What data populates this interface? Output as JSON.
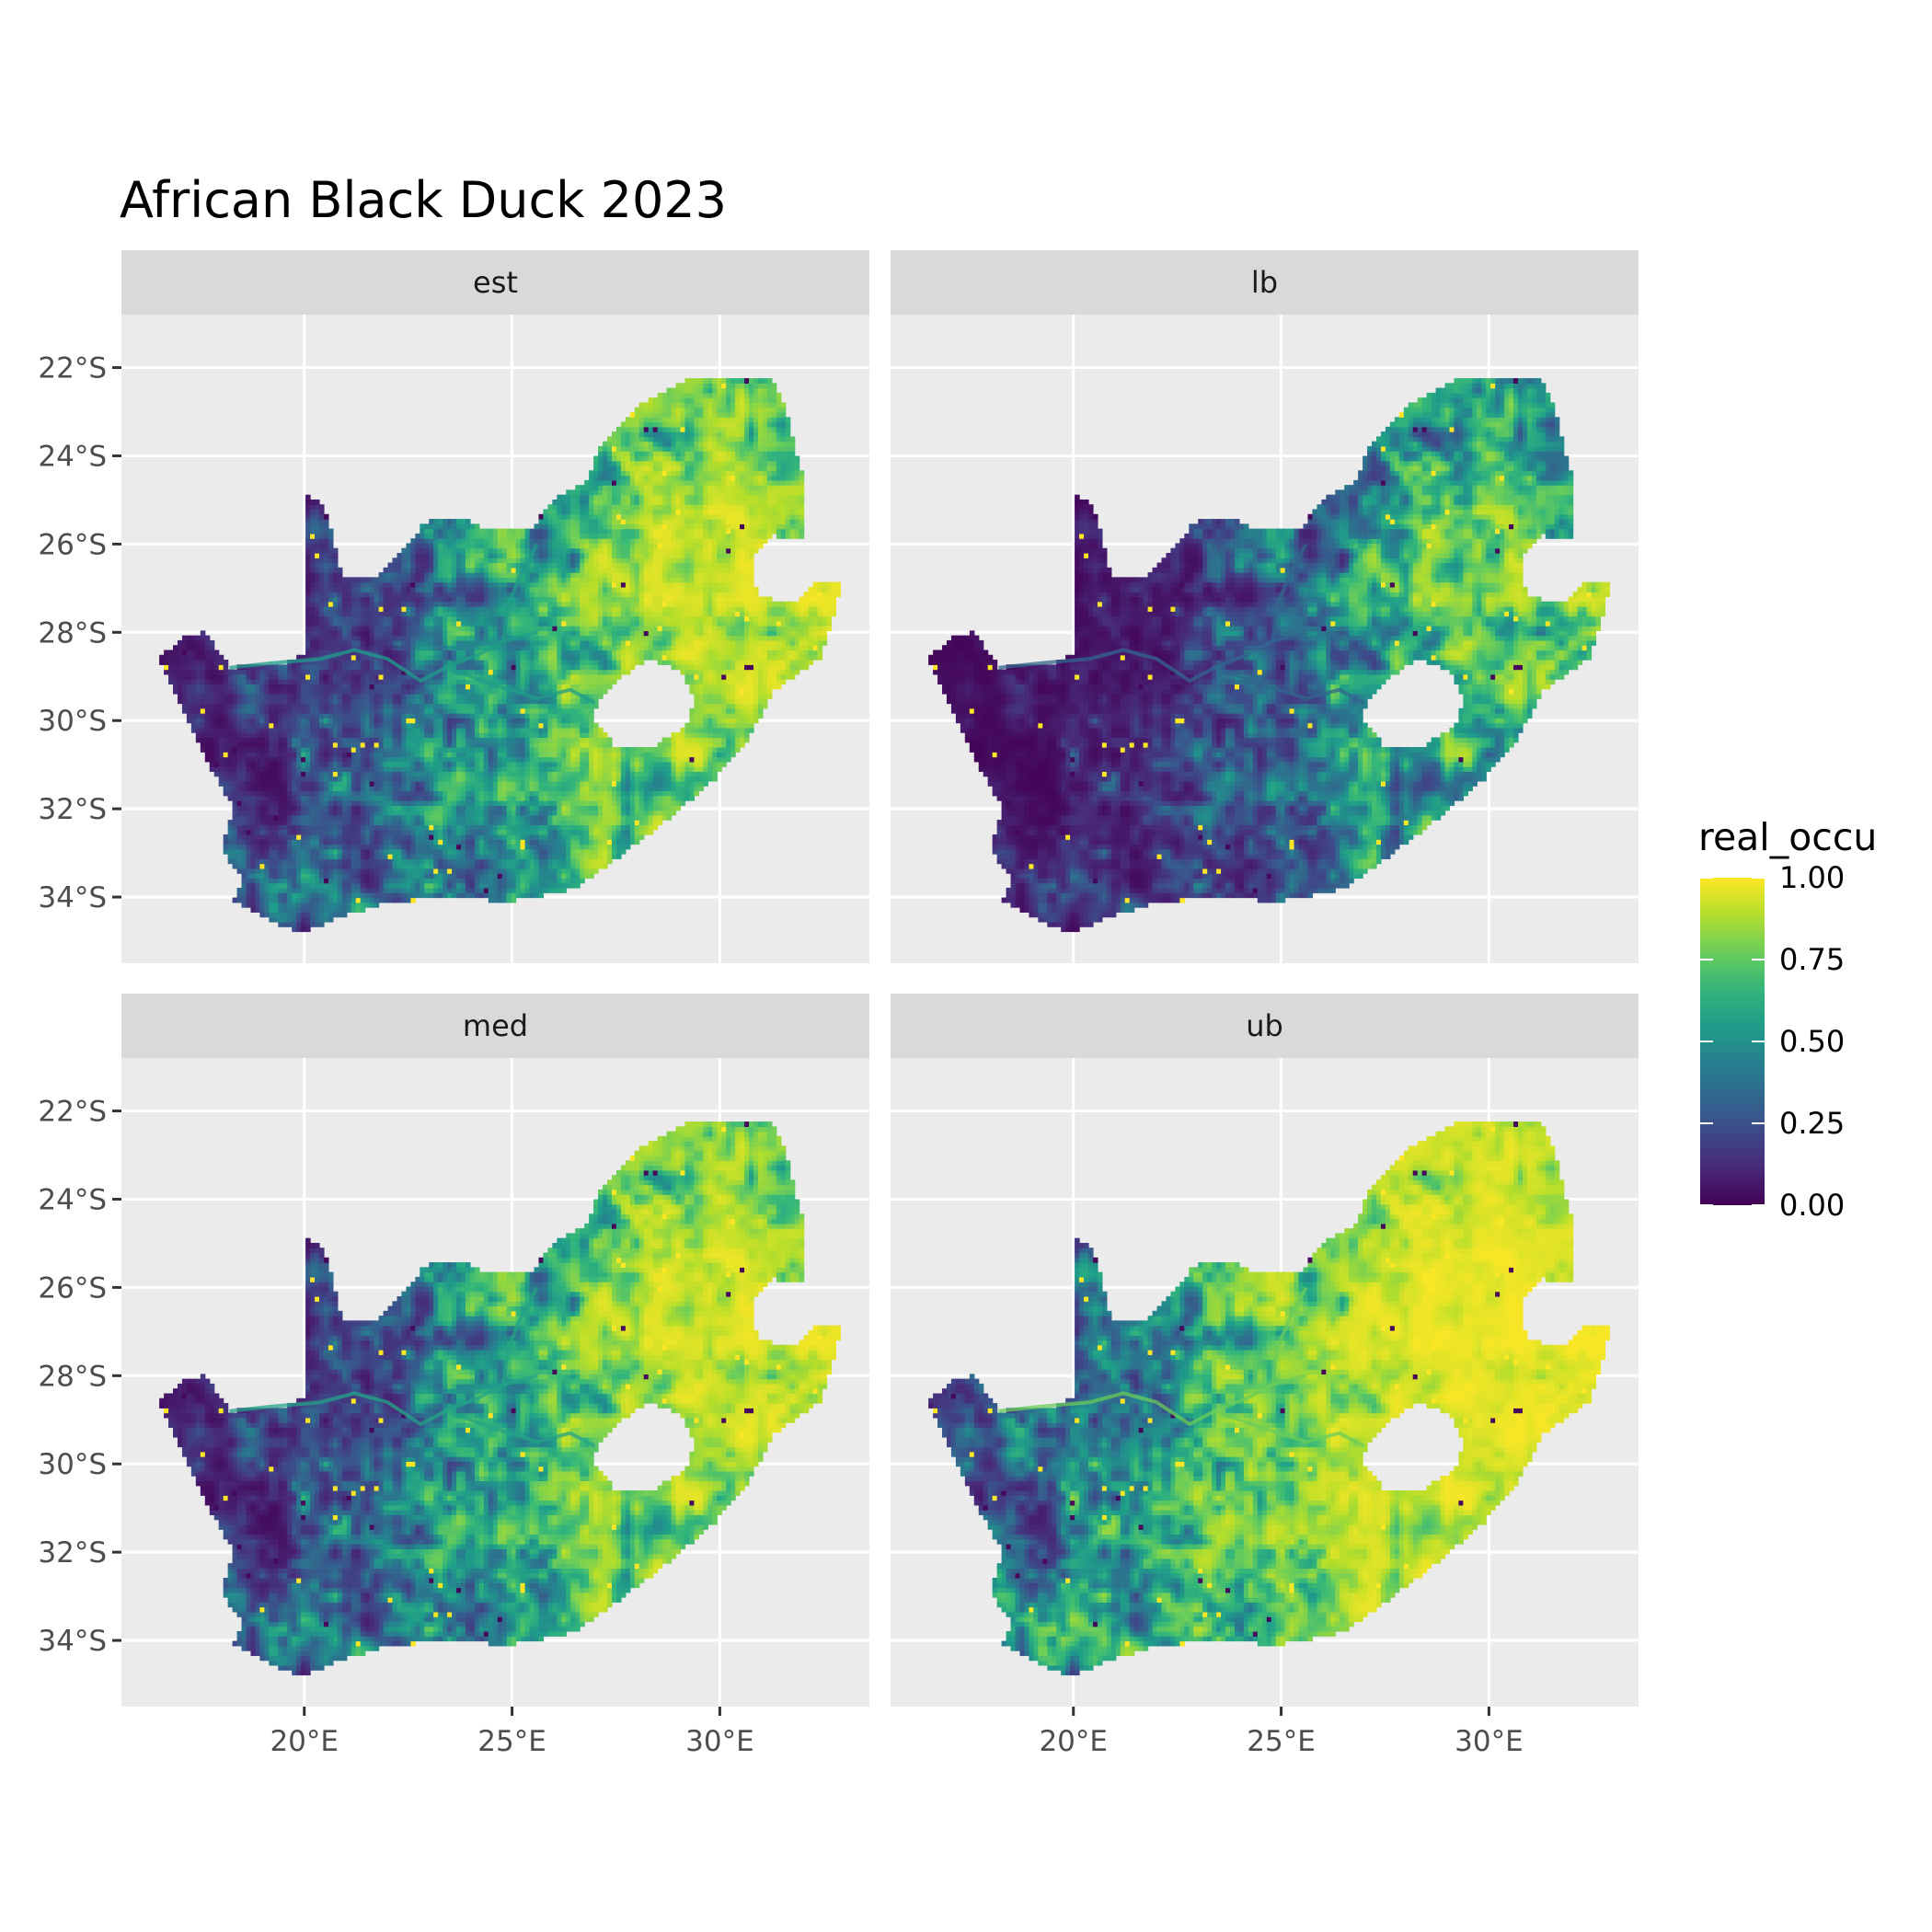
{
  "title": "African Black Duck 2023",
  "panels": [
    {
      "label": "est",
      "shift": 0.0
    },
    {
      "label": "lb",
      "shift": -0.22
    },
    {
      "label": "med",
      "shift": 0.03
    },
    {
      "label": "ub",
      "shift": 0.22
    }
  ],
  "axes": {
    "x_ticks": [
      {
        "value": 20,
        "label": "20°E"
      },
      {
        "value": 25,
        "label": "25°E"
      },
      {
        "value": 30,
        "label": "30°E"
      }
    ],
    "y_ticks": [
      {
        "value": -22,
        "label": "22°S"
      },
      {
        "value": -24,
        "label": "24°S"
      },
      {
        "value": -26,
        "label": "26°S"
      },
      {
        "value": -28,
        "label": "28°S"
      },
      {
        "value": -30,
        "label": "30°S"
      },
      {
        "value": -32,
        "label": "32°S"
      },
      {
        "value": -34,
        "label": "34°S"
      }
    ],
    "xlim": [
      15.6,
      33.6
    ],
    "ylim": [
      -35.5,
      -20.8
    ]
  },
  "legend": {
    "title": "real_occu",
    "ticks": [
      {
        "value": 1.0,
        "label": "1.00"
      },
      {
        "value": 0.75,
        "label": "0.75"
      },
      {
        "value": 0.5,
        "label": "0.50"
      },
      {
        "value": 0.25,
        "label": "0.25"
      },
      {
        "value": 0.0,
        "label": "0.00"
      }
    ],
    "colors": [
      "#440154",
      "#3b528b",
      "#21918c",
      "#5ec962",
      "#fde725"
    ]
  },
  "map_data": {
    "outline": [
      [
        16.5,
        -28.6
      ],
      [
        17.1,
        -28.1
      ],
      [
        17.6,
        -28.0
      ],
      [
        18.2,
        -28.8
      ],
      [
        19.5,
        -28.7
      ],
      [
        20.0,
        -28.5
      ],
      [
        20.0,
        -24.8
      ],
      [
        20.5,
        -25.2
      ],
      [
        20.8,
        -26.3
      ],
      [
        20.9,
        -26.8
      ],
      [
        21.7,
        -26.8
      ],
      [
        22.5,
        -26.0
      ],
      [
        22.9,
        -25.5
      ],
      [
        23.8,
        -25.4
      ],
      [
        24.5,
        -25.7
      ],
      [
        25.5,
        -25.6
      ],
      [
        26.0,
        -25.0
      ],
      [
        26.8,
        -24.6
      ],
      [
        27.1,
        -23.8
      ],
      [
        28.0,
        -22.9
      ],
      [
        29.3,
        -22.2
      ],
      [
        31.3,
        -22.3
      ],
      [
        31.6,
        -23.0
      ],
      [
        32.0,
        -24.5
      ],
      [
        32.0,
        -25.9
      ],
      [
        31.4,
        -25.9
      ],
      [
        31.1,
        -26.3
      ],
      [
        31.3,
        -27.3
      ],
      [
        31.9,
        -27.3
      ],
      [
        32.2,
        -26.9
      ],
      [
        32.9,
        -26.9
      ],
      [
        32.7,
        -27.8
      ],
      [
        32.4,
        -28.6
      ],
      [
        31.3,
        -29.3
      ],
      [
        30.7,
        -30.4
      ],
      [
        29.9,
        -31.3
      ],
      [
        28.8,
        -32.2
      ],
      [
        27.4,
        -33.2
      ],
      [
        26.5,
        -33.8
      ],
      [
        25.6,
        -34.0
      ],
      [
        24.8,
        -34.1
      ],
      [
        23.6,
        -34.0
      ],
      [
        22.1,
        -34.1
      ],
      [
        20.7,
        -34.5
      ],
      [
        20.0,
        -34.8
      ],
      [
        19.3,
        -34.6
      ],
      [
        18.8,
        -34.3
      ],
      [
        18.3,
        -34.1
      ],
      [
        18.5,
        -33.6
      ],
      [
        18.0,
        -32.9
      ],
      [
        18.3,
        -32.0
      ],
      [
        17.7,
        -31.0
      ],
      [
        17.1,
        -29.8
      ],
      [
        16.5,
        -28.6
      ]
    ],
    "lesotho": [
      [
        27.0,
        -29.7
      ],
      [
        27.5,
        -29.1
      ],
      [
        28.3,
        -28.6
      ],
      [
        29.1,
        -28.9
      ],
      [
        29.4,
        -29.5
      ],
      [
        29.2,
        -30.1
      ],
      [
        28.4,
        -30.6
      ],
      [
        27.5,
        -30.6
      ],
      [
        27.0,
        -30.0
      ]
    ],
    "swaziland": [
      [
        30.8,
        -26.2
      ],
      [
        31.3,
        -25.8
      ],
      [
        32.0,
        -26.1
      ],
      [
        32.1,
        -26.8
      ],
      [
        31.6,
        -27.3
      ],
      [
        31.0,
        -27.2
      ],
      [
        30.8,
        -26.8
      ]
    ],
    "rivers": [
      [
        [
          18.2,
          -28.8
        ],
        [
          19.2,
          -28.7
        ],
        [
          20.4,
          -28.6
        ],
        [
          21.2,
          -28.4
        ],
        [
          22.0,
          -28.6
        ],
        [
          22.8,
          -29.1
        ],
        [
          23.4,
          -28.8
        ],
        [
          24.2,
          -28.5
        ],
        [
          24.8,
          -28.2
        ],
        [
          25.6,
          -28.0
        ]
      ],
      [
        [
          23.4,
          -28.8
        ],
        [
          24.6,
          -29.2
        ],
        [
          25.6,
          -29.5
        ],
        [
          26.4,
          -29.3
        ],
        [
          27.0,
          -29.6
        ]
      ],
      [
        [
          24.8,
          -28.2
        ],
        [
          24.9,
          -27.4
        ],
        [
          25.2,
          -26.7
        ],
        [
          25.6,
          -26.0
        ]
      ]
    ]
  }
}
